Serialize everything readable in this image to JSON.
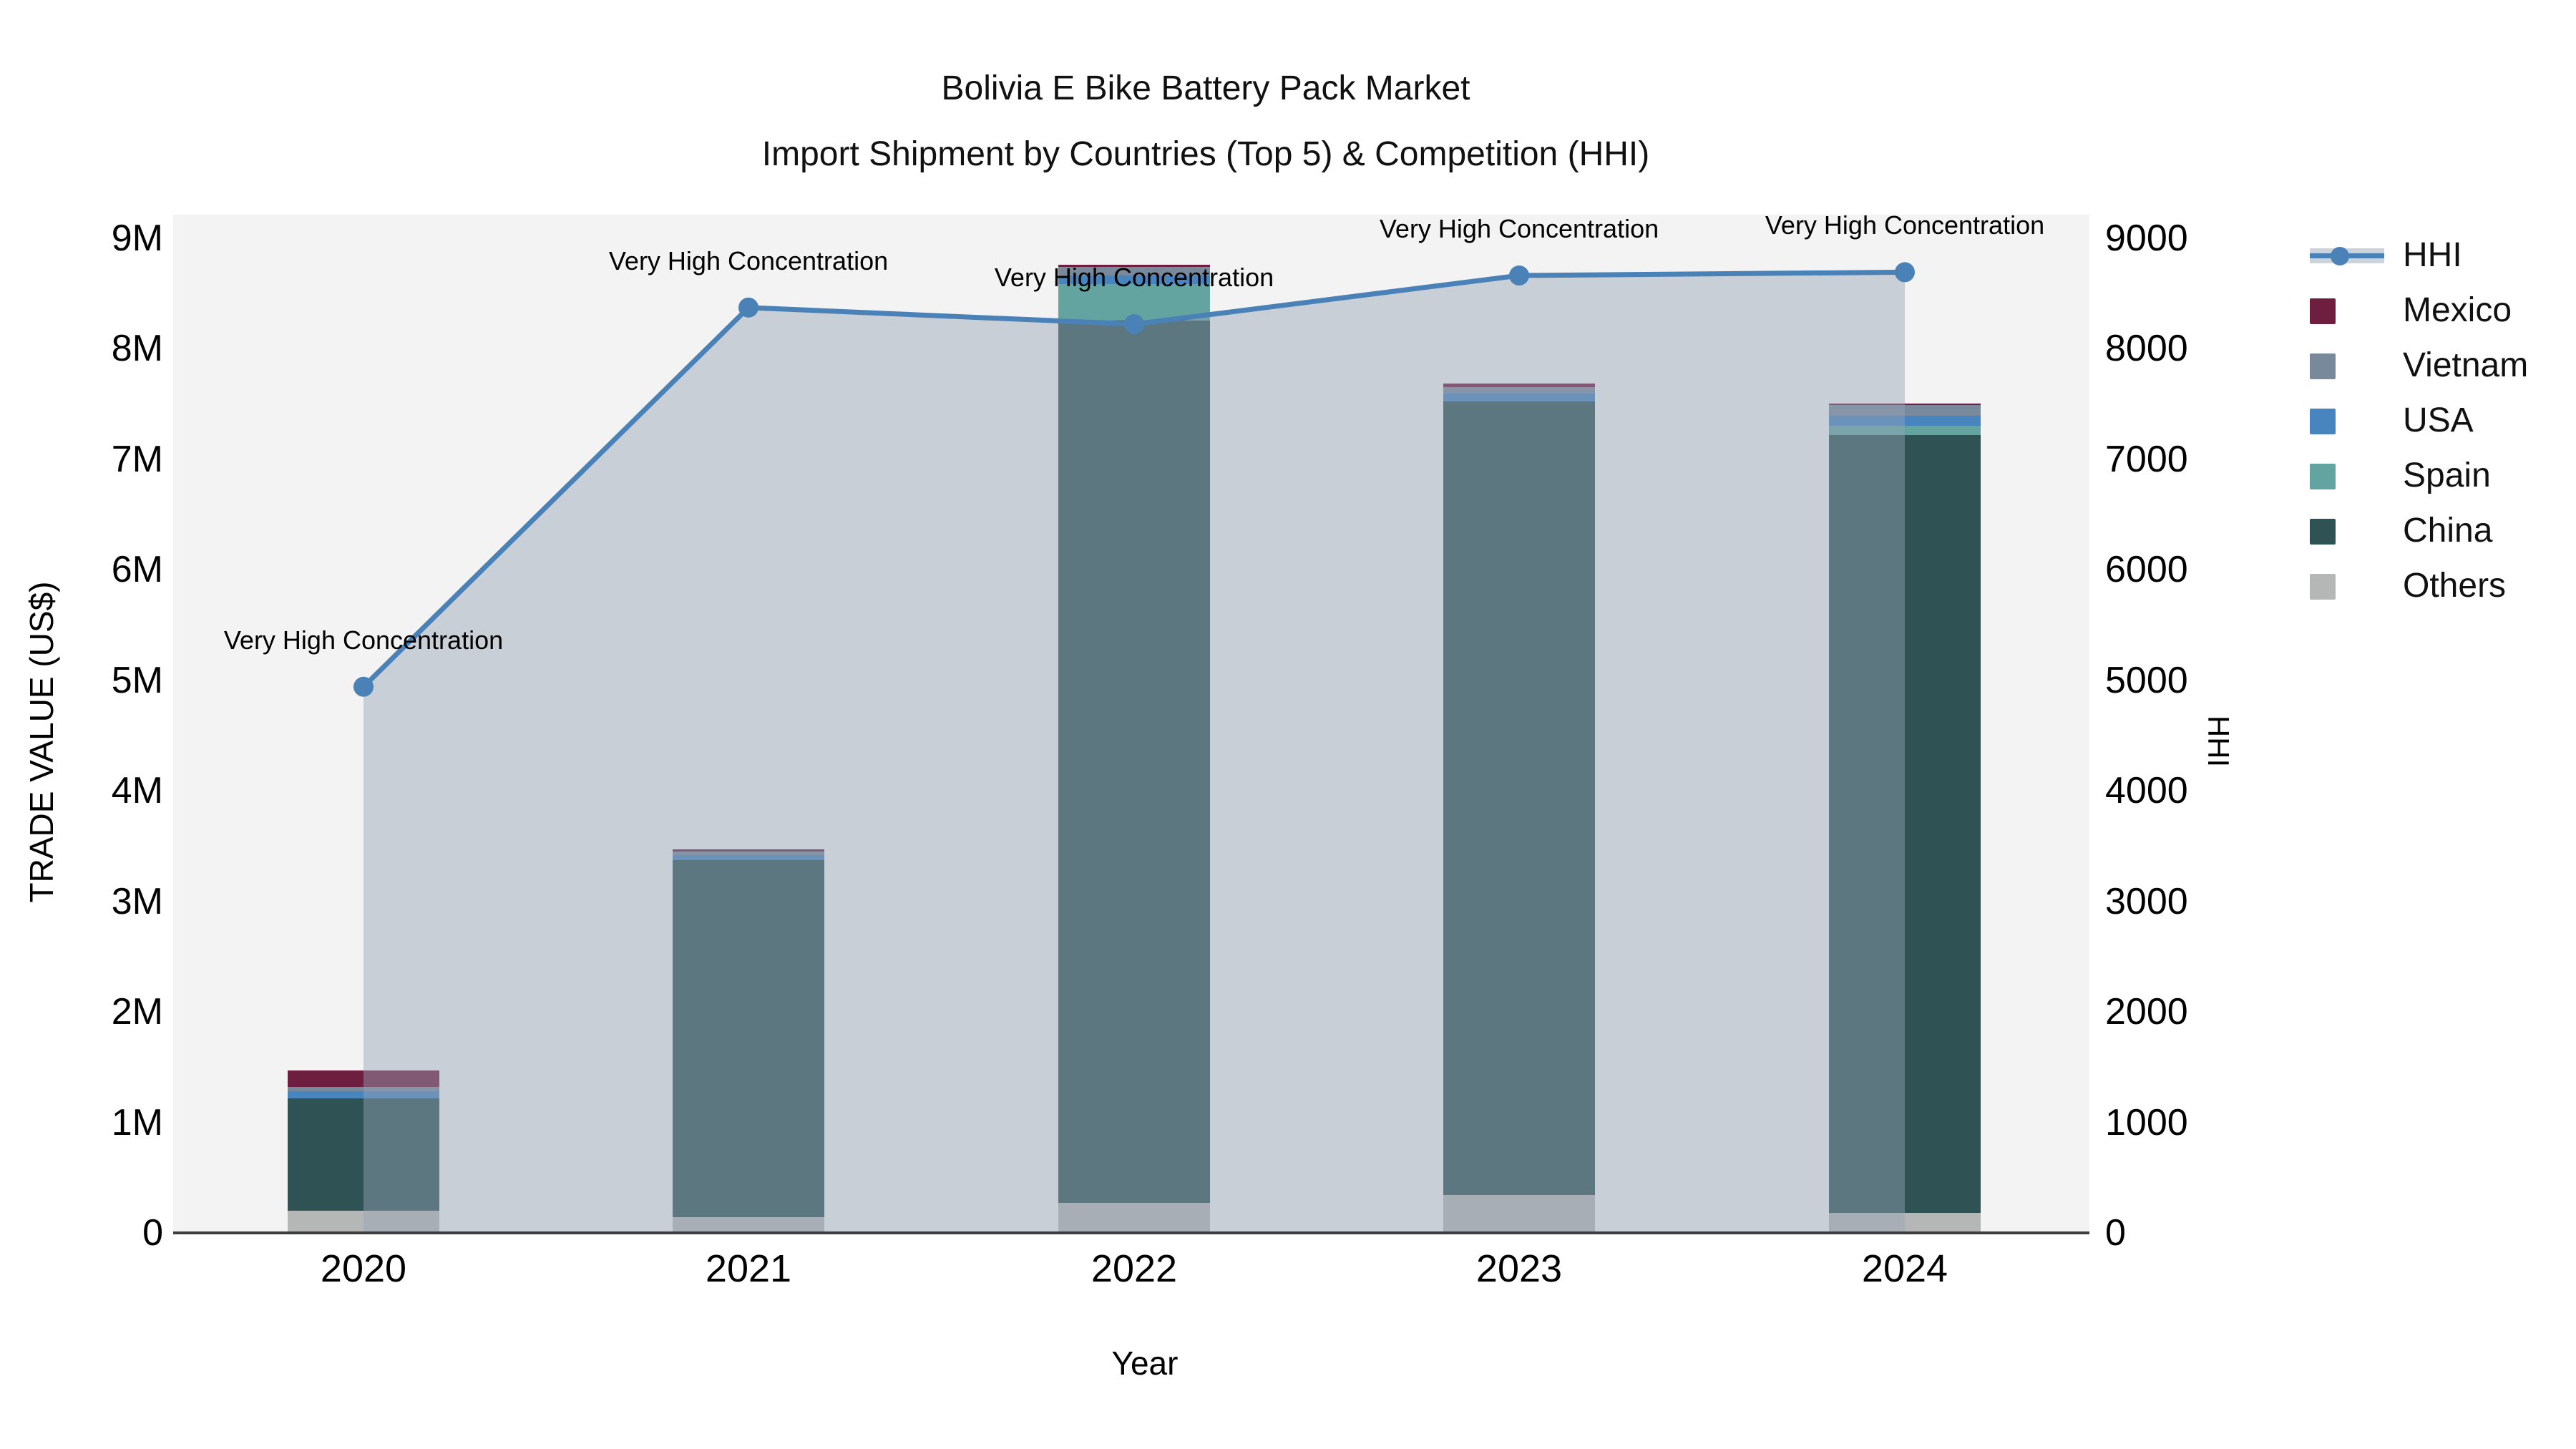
{
  "title": {
    "line1": "Bolivia E Bike Battery Pack Market",
    "line2": "Import Shipment by Countries (Top 5) & Competition (HHI)"
  },
  "axes": {
    "left": {
      "title": "TRADE VALUE (US$)",
      "ticks": [
        "0",
        "1M",
        "2M",
        "3M",
        "4M",
        "5M",
        "6M",
        "7M",
        "8M",
        "9M"
      ]
    },
    "right": {
      "title": "HHI",
      "ticks": [
        "0",
        "1000",
        "2000",
        "3000",
        "4000",
        "5000",
        "6000",
        "7000",
        "8000",
        "9000"
      ]
    },
    "x": {
      "title": "Year"
    }
  },
  "legend": {
    "items": [
      {
        "label": "HHI",
        "type": "line",
        "color": "#4a82b8"
      },
      {
        "label": "Mexico",
        "type": "swatch",
        "color": "#6e1e3e"
      },
      {
        "label": "Vietnam",
        "type": "swatch",
        "color": "#78899c"
      },
      {
        "label": "USA",
        "type": "swatch",
        "color": "#4884bd"
      },
      {
        "label": "Spain",
        "type": "swatch",
        "color": "#63a4a1"
      },
      {
        "label": "China",
        "type": "swatch",
        "color": "#2f5254"
      },
      {
        "label": "Others",
        "type": "swatch",
        "color": "#b4b7b6"
      }
    ]
  },
  "chart_data": {
    "type": "combo-stacked-bar-line",
    "categories": [
      "2020",
      "2021",
      "2022",
      "2023",
      "2024"
    ],
    "bar_value_unit": "Trade value (US$ millions)",
    "stack_order_bottom_to_top": [
      "Others",
      "China",
      "Spain",
      "USA",
      "Vietnam",
      "Mexico"
    ],
    "series": [
      {
        "name": "Others",
        "color": "#b4b7b6",
        "values": [
          0.2,
          0.14,
          0.27,
          0.34,
          0.18
        ]
      },
      {
        "name": "China",
        "color": "#2f5254",
        "values": [
          1.02,
          3.23,
          7.98,
          7.18,
          7.04
        ]
      },
      {
        "name": "Spain",
        "color": "#63a4a1",
        "values": [
          0.0,
          0.0,
          0.33,
          0.0,
          0.08
        ]
      },
      {
        "name": "USA",
        "color": "#4884bd",
        "values": [
          0.06,
          0.05,
          0.08,
          0.07,
          0.09
        ]
      },
      {
        "name": "Vietnam",
        "color": "#78899c",
        "values": [
          0.04,
          0.03,
          0.08,
          0.06,
          0.1
        ]
      },
      {
        "name": "Mexico",
        "color": "#6e1e3e",
        "values": [
          0.15,
          0.02,
          0.02,
          0.03,
          0.01
        ]
      }
    ],
    "bar_totals_millions": [
      1.47,
      3.47,
      8.76,
      7.68,
      7.5
    ],
    "line_series": {
      "name": "HHI",
      "color": "#4a82b8",
      "fill_color": "rgba(150,163,181,0.45)",
      "values": [
        4940,
        8370,
        8220,
        8660,
        8690
      ]
    },
    "annotations": [
      "Very High Concentration",
      "Very High Concentration",
      "Very High Concentration",
      "Very High Concentration",
      "Very High Concentration"
    ],
    "y_left": {
      "label": "TRADE VALUE (US$)",
      "min": 0,
      "max": 9000000,
      "grid_step": 1000000
    },
    "y_right": {
      "label": "HHI",
      "min": 0,
      "max": 9000
    },
    "x_label": "Year",
    "grid": true,
    "legend_position": "right"
  }
}
